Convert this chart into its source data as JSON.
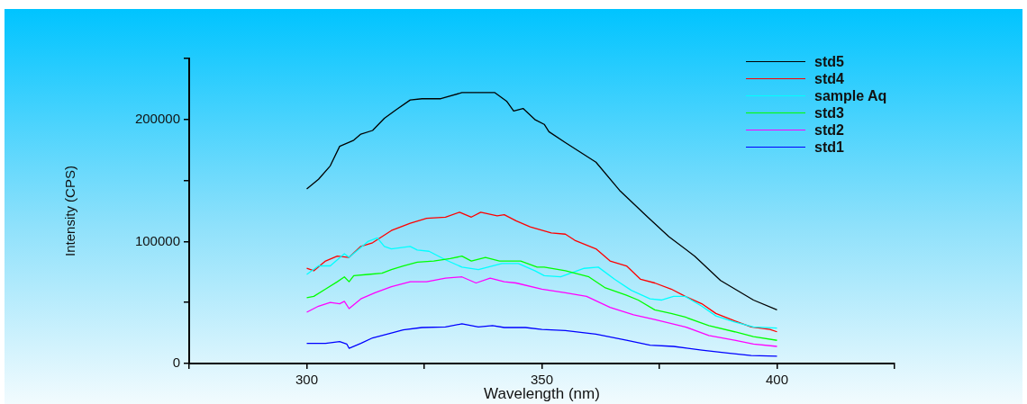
{
  "chart_data": {
    "type": "line",
    "xlabel": "Wavelength (nm)",
    "ylabel": "Intensity (CPS)",
    "xlim": [
      275,
      425
    ],
    "xticks": [
      {
        "value": 275,
        "label": null
      },
      300,
      {
        "value": 325,
        "label": null
      },
      350,
      {
        "value": 375,
        "label": null
      },
      400,
      {
        "value": 425,
        "label": null
      }
    ],
    "ylim": [
      0,
      250000
    ],
    "yticks": [
      0,
      {
        "value": 50000,
        "label": null
      },
      100000,
      {
        "value": 150000,
        "label": null
      },
      200000,
      {
        "value": 250000,
        "label": null
      }
    ],
    "grid": false,
    "legend": "top right",
    "marker": "none",
    "line_style": "solid",
    "series": [
      {
        "name": "std5",
        "color": "#000000",
        "x": [
          300,
          302.5,
          305,
          307,
          310,
          311.5,
          314,
          316.5,
          319,
          322,
          324.5,
          328.5,
          333,
          337,
          340,
          342.5,
          344,
          346,
          348.5,
          350.5,
          351.5,
          355,
          361.5,
          366.5,
          372.5,
          377,
          382.5,
          388,
          395,
          400
        ],
        "values": [
          143000,
          151000,
          162000,
          178000,
          183000,
          188000,
          191000,
          201000,
          208000,
          216000,
          217000,
          217000,
          222000,
          222000,
          222000,
          215000,
          207000,
          209000,
          200000,
          196000,
          190000,
          181000,
          165000,
          142000,
          120000,
          104000,
          88000,
          68000,
          52000,
          44000
        ]
      },
      {
        "name": "std4",
        "color": "#ff0000",
        "x": [
          300,
          301.5,
          304,
          306.5,
          309,
          311.5,
          314,
          318,
          322,
          325.5,
          329.5,
          332.5,
          335,
          337,
          340.5,
          342,
          344.5,
          347.5,
          352,
          355,
          357,
          361.5,
          364.5,
          368,
          371,
          374,
          377.5,
          380.5,
          384,
          387,
          391,
          394.5,
          398.5,
          400
        ],
        "values": [
          78000,
          76000,
          84000,
          88000,
          87000,
          96000,
          99000,
          109000,
          115000,
          119000,
          120000,
          124000,
          120000,
          124000,
          121000,
          122000,
          117000,
          112000,
          107000,
          106000,
          101000,
          94000,
          84000,
          80000,
          69000,
          66000,
          61000,
          55000,
          49000,
          41000,
          35000,
          30000,
          28000,
          26000
        ]
      },
      {
        "name": "sample Aq",
        "color": "#00ffff",
        "x": [
          300,
          302.5,
          305,
          308,
          309,
          313,
          315,
          316.5,
          318,
          322,
          323.5,
          326,
          329.5,
          333,
          336.5,
          341.5,
          345,
          348.5,
          350.5,
          354,
          359,
          362,
          365.5,
          369,
          373,
          375.5,
          378,
          380.5,
          384,
          387,
          391,
          395,
          400
        ],
        "values": [
          73000,
          80000,
          80000,
          90000,
          87000,
          100000,
          103000,
          96000,
          94000,
          96000,
          93000,
          92000,
          85000,
          79000,
          77000,
          82000,
          82000,
          76000,
          72000,
          71000,
          78000,
          79000,
          69000,
          60000,
          53000,
          52000,
          55000,
          55000,
          47000,
          39000,
          34000,
          30000,
          29000
        ]
      },
      {
        "name": "std3",
        "color": "#00ff00",
        "x": [
          300,
          301.5,
          304,
          306.5,
          308,
          309,
          310,
          313,
          316,
          318,
          320.5,
          323.5,
          327,
          330.5,
          333,
          335,
          338,
          341,
          345.5,
          349,
          350.5,
          355,
          360,
          363.5,
          368,
          370.5,
          374,
          377.5,
          380.5,
          385.5,
          391,
          395,
          400
        ],
        "values": [
          54000,
          55000,
          61000,
          67000,
          71000,
          67000,
          72000,
          73000,
          74000,
          77000,
          80000,
          83000,
          84000,
          86000,
          88000,
          84000,
          87000,
          84000,
          84000,
          79000,
          79000,
          76000,
          71000,
          62000,
          56000,
          52000,
          44000,
          41000,
          38000,
          31000,
          26000,
          22000,
          19000
        ]
      },
      {
        "name": "std2",
        "color": "#ff00ff",
        "x": [
          300,
          302.5,
          305,
          307,
          308,
          309,
          311.5,
          314.5,
          318,
          322,
          325.5,
          329.5,
          333,
          336,
          339,
          342,
          344.5,
          350,
          355,
          359.5,
          364.5,
          369.5,
          374,
          380.5,
          385.5,
          391,
          395,
          400
        ],
        "values": [
          42000,
          47000,
          50000,
          49000,
          51000,
          45000,
          53000,
          58000,
          63000,
          67000,
          67000,
          70000,
          71000,
          66000,
          70000,
          67000,
          66000,
          61000,
          58000,
          55000,
          46000,
          40000,
          36000,
          30000,
          23000,
          19000,
          16000,
          14000
        ]
      },
      {
        "name": "std1",
        "color": "#0000ff",
        "x": [
          300,
          304,
          307,
          308.5,
          309,
          311.5,
          314,
          318,
          320.5,
          324.5,
          329.5,
          333,
          336.5,
          339.5,
          342,
          346.5,
          350,
          355,
          361.5,
          368,
          373,
          378,
          384,
          389.5,
          394.5,
          400
        ],
        "values": [
          16500,
          16500,
          18000,
          16000,
          12500,
          16500,
          21000,
          25000,
          27500,
          29500,
          30000,
          32500,
          30000,
          31000,
          29500,
          29500,
          28000,
          27000,
          24000,
          19000,
          15000,
          14000,
          11000,
          8500,
          6500,
          6000
        ]
      }
    ]
  }
}
